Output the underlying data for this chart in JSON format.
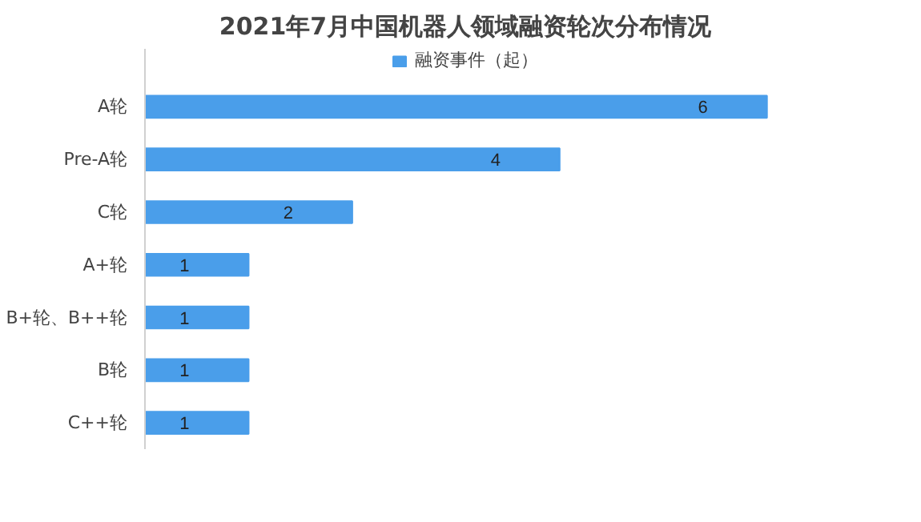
{
  "chart_data": {
    "type": "bar",
    "orientation": "horizontal",
    "title": "2021年7月中国机器人领域融资轮次分布情况",
    "categories": [
      "A轮",
      "Pre-A轮",
      "C轮",
      "A+轮",
      "B+轮、B++轮",
      "B轮",
      "C++轮"
    ],
    "series": [
      {
        "name": "融资事件（起）",
        "color": "#4a9eea",
        "values": [
          6,
          4,
          2,
          1,
          1,
          1,
          1
        ]
      }
    ],
    "data_labels": true,
    "legend": "top",
    "grid": false
  }
}
